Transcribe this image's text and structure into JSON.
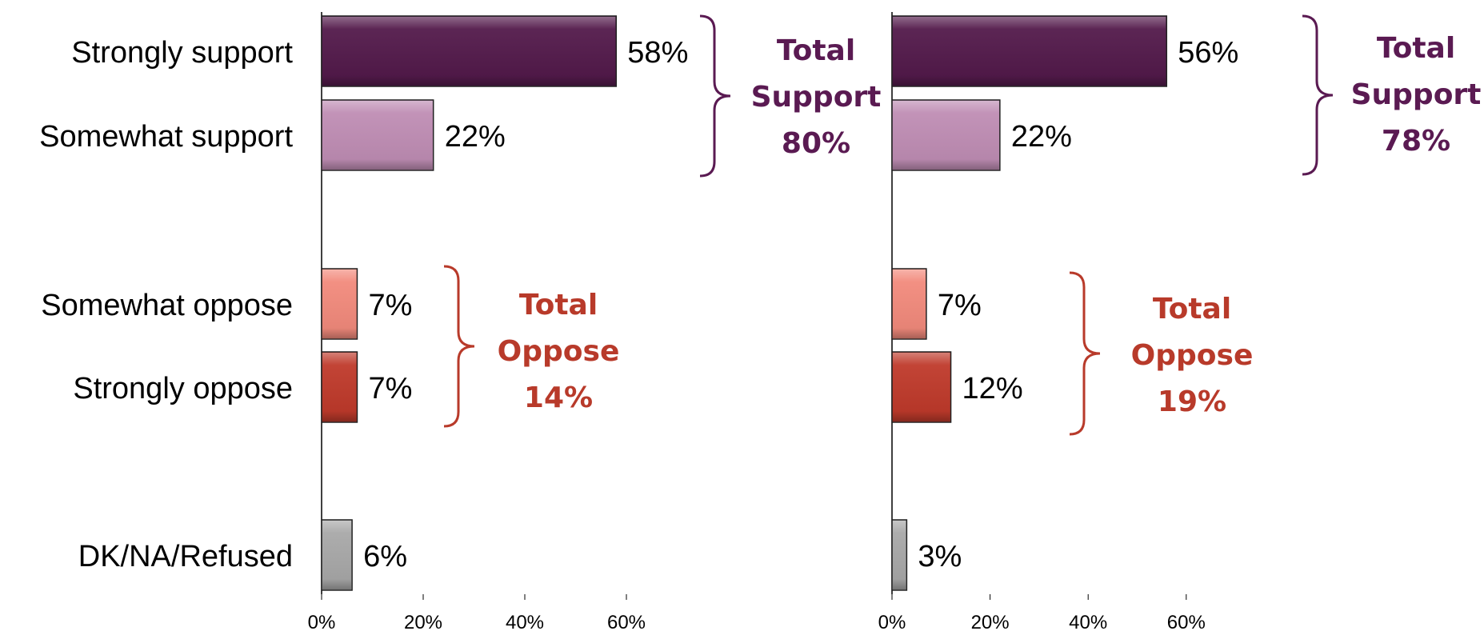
{
  "colors": {
    "strongly_support": "#531a4b",
    "somewhat_support": "#bf8db4",
    "somewhat_oppose": "#f28a7c",
    "strongly_oppose": "#bf3a2b",
    "dk": "#a8a8a8",
    "support_text": "#5a1a52",
    "oppose_text": "#b83a2a"
  },
  "chart_data": [
    {
      "type": "bar",
      "orientation": "horizontal",
      "categories": [
        "Strongly support",
        "Somewhat support",
        "Somewhat oppose",
        "Strongly oppose",
        "DK/NA/Refused"
      ],
      "values": [
        58,
        22,
        7,
        7,
        6
      ],
      "value_labels": [
        "58%",
        "22%",
        "7%",
        "7%",
        "6%"
      ],
      "xlim": [
        0,
        60
      ],
      "ticks": [
        "0%",
        "20%",
        "40%",
        "60%"
      ],
      "groups": [
        {
          "lines": [
            "Total",
            "Support",
            "80%"
          ],
          "kind": "support"
        },
        {
          "lines": [
            "Total",
            "Oppose",
            "14%"
          ],
          "kind": "oppose"
        }
      ]
    },
    {
      "type": "bar",
      "orientation": "horizontal",
      "categories": [
        "Strongly support",
        "Somewhat support",
        "Somewhat oppose",
        "Strongly oppose",
        "DK/NA/Refused"
      ],
      "values": [
        56,
        22,
        7,
        12,
        3
      ],
      "value_labels": [
        "56%",
        "22%",
        "7%",
        "12%",
        "3%"
      ],
      "xlim": [
        0,
        60
      ],
      "ticks": [
        "0%",
        "20%",
        "40%",
        "60%"
      ],
      "groups": [
        {
          "lines": [
            "Total",
            "Support",
            "78%"
          ],
          "kind": "support"
        },
        {
          "lines": [
            "Total",
            "Oppose",
            "19%"
          ],
          "kind": "oppose"
        }
      ]
    }
  ]
}
